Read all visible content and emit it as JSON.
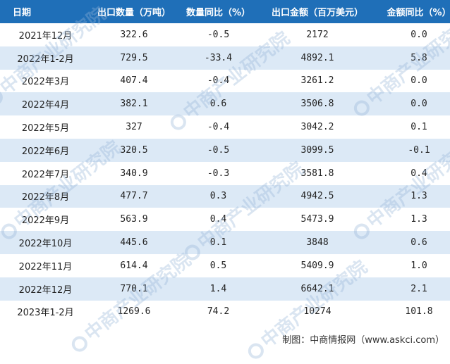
{
  "table": {
    "headers": [
      "日期",
      "出口数量（万吨）",
      "数量同比（%）",
      "出口金额（百万美元）",
      "金额同比（%）"
    ],
    "rows": [
      [
        "2021年12月",
        "322.6",
        "-0.5",
        "2172",
        "0.0"
      ],
      [
        "2022年1-2月",
        "729.5",
        "-33.4",
        "4892.1",
        "5.8"
      ],
      [
        "2022年3月",
        "407.4",
        "-0.4",
        "3261.2",
        "0.0"
      ],
      [
        "2022年4月",
        "382.1",
        "0.6",
        "3506.8",
        "0.0"
      ],
      [
        "2022年5月",
        "327",
        "-0.4",
        "3042.2",
        "0.1"
      ],
      [
        "2022年6月",
        "320.5",
        "-0.5",
        "3099.5",
        "-0.1"
      ],
      [
        "2022年7月",
        "340.9",
        "-0.3",
        "3581.8",
        "0.4"
      ],
      [
        "2022年8月",
        "477.7",
        "0.3",
        "4942.5",
        "1.3"
      ],
      [
        "2022年9月",
        "563.9",
        "0.4",
        "5473.9",
        "1.3"
      ],
      [
        "2022年10月",
        "445.6",
        "0.1",
        "3848",
        "0.6"
      ],
      [
        "2022年11月",
        "614.4",
        "0.5",
        "5409.9",
        "1.0"
      ],
      [
        "2022年12月",
        "770.1",
        "1.4",
        "6642.1",
        "2.1"
      ],
      [
        "2023年1-2月",
        "1269.6",
        "74.2",
        "10274",
        "101.8"
      ]
    ]
  },
  "source": "制图：中商情报网（www.askci.com）",
  "watermark": "中商产业研究院",
  "colors": {
    "header_bg": "#1f6fb8",
    "header_text": "#ffffff",
    "row_alt": "#dce9f6",
    "row": "#ffffff"
  }
}
